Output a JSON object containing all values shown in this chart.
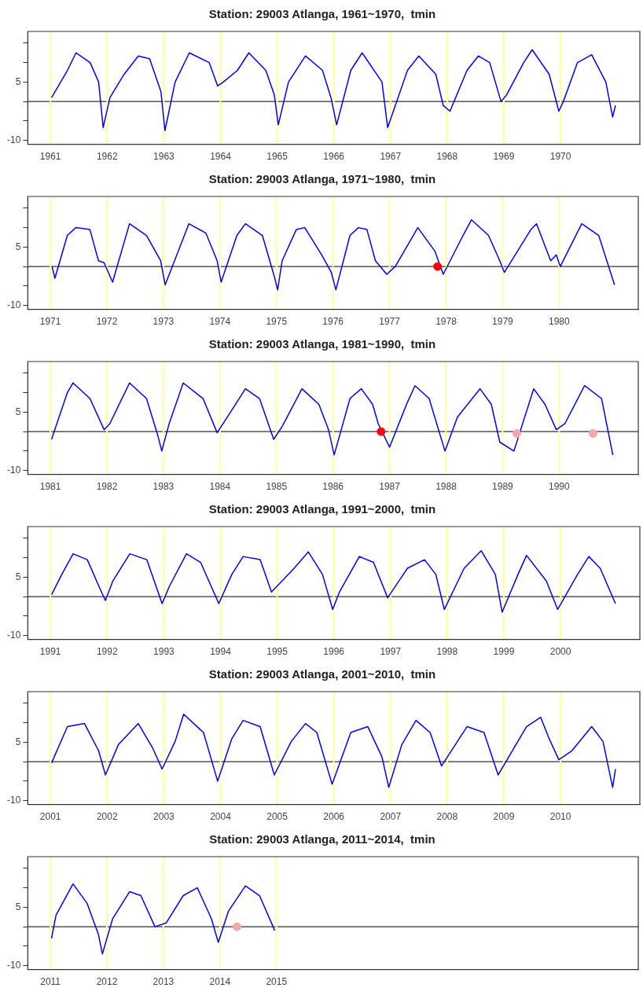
{
  "chart_data": [
    {
      "type": "line",
      "title": "Station: 29003 Atlanga, 1961~1970,  tmin",
      "xlim": [
        1960.6,
        1971.4
      ],
      "xticks": [
        1961,
        1962,
        1963,
        1964,
        1965,
        1966,
        1967,
        1968,
        1969,
        1970
      ],
      "ylim": [
        -11,
        18
      ],
      "yticks": [
        {
          "value": -10,
          "label": "-10"
        },
        {
          "value": -5,
          "label": null
        },
        {
          "value": 0,
          "label": null
        },
        {
          "value": 5,
          "label": "5"
        },
        {
          "value": 10,
          "label": null
        },
        {
          "value": 15,
          "label": null
        }
      ],
      "ref_lines": [
        {
          "axis": "y",
          "value": 0,
          "color": "#333333"
        },
        {
          "axis": "x",
          "value": 1961,
          "color": "#ffff99"
        },
        {
          "axis": "x",
          "value": 1962,
          "color": "#ffff99"
        },
        {
          "axis": "x",
          "value": 1963,
          "color": "#ffff99"
        },
        {
          "axis": "x",
          "value": 1964,
          "color": "#ffff99"
        },
        {
          "axis": "x",
          "value": 1965,
          "color": "#ffff99"
        },
        {
          "axis": "x",
          "value": 1966,
          "color": "#ffff99"
        },
        {
          "axis": "x",
          "value": 1967,
          "color": "#ffff99"
        },
        {
          "axis": "x",
          "value": 1968,
          "color": "#ffff99"
        },
        {
          "axis": "x",
          "value": 1969,
          "color": "#ffff99"
        },
        {
          "axis": "x",
          "value": 1970,
          "color": "#ffff99"
        }
      ],
      "series": [
        {
          "type": "line",
          "color": "#0000ff",
          "x": [
            1961.02,
            1961.3,
            1961.45,
            1961.7,
            1961.85,
            1961.93,
            1962.05,
            1962.3,
            1962.55,
            1962.75,
            1962.95,
            1963.02,
            1963.2,
            1963.45,
            1963.8,
            1963.95,
            1964.05,
            1964.3,
            1964.5,
            1964.8,
            1964.95,
            1965.02,
            1965.2,
            1965.5,
            1965.8,
            1965.95,
            1966.05,
            1966.3,
            1966.5,
            1966.85,
            1966.95,
            1967.05,
            1967.3,
            1967.5,
            1967.8,
            1967.93,
            1968.05,
            1968.35,
            1968.55,
            1968.75,
            1968.95,
            1969.05,
            1969.35,
            1969.5,
            1969.8,
            1969.97,
            1970.05,
            1970.3,
            1970.55,
            1970.8,
            1970.92,
            1970.97
          ],
          "values": [
            1,
            8,
            12.5,
            10,
            5,
            -6.7,
            1,
            7,
            11.7,
            11,
            2.5,
            -7.5,
            5,
            12.5,
            10,
            4,
            5,
            8,
            12.5,
            8,
            1.7,
            -6,
            5,
            11.7,
            8,
            1,
            -6,
            8,
            12.5,
            5,
            -6.7,
            -2.5,
            8,
            11.7,
            7,
            -1,
            -2.5,
            8,
            11.7,
            10,
            0,
            1.7,
            10,
            13.3,
            7,
            -2.5,
            0,
            10,
            12,
            5,
            -4,
            -1
          ]
        }
      ]
    },
    {
      "type": "line",
      "title": "Station: 29003 Atlanga, 1971~1980,  tmin",
      "xlim": [
        1970.6,
        1981.4
      ],
      "xticks": [
        1971,
        1972,
        1973,
        1974,
        1975,
        1976,
        1977,
        1978,
        1979,
        1980
      ],
      "ylim": [
        -11,
        18
      ],
      "yticks": [
        {
          "value": -10,
          "label": "-10"
        },
        {
          "value": -5,
          "label": null
        },
        {
          "value": 0,
          "label": null
        },
        {
          "value": 5,
          "label": "5"
        },
        {
          "value": 10,
          "label": null
        },
        {
          "value": 15,
          "label": null
        }
      ],
      "ref_lines": [
        {
          "axis": "y",
          "value": 0,
          "color": "#333333"
        },
        {
          "axis": "x",
          "value": 1971,
          "color": "#ffff99"
        },
        {
          "axis": "x",
          "value": 1972,
          "color": "#ffff99"
        },
        {
          "axis": "x",
          "value": 1973,
          "color": "#ffff99"
        },
        {
          "axis": "x",
          "value": 1974,
          "color": "#ffff99"
        },
        {
          "axis": "x",
          "value": 1975,
          "color": "#ffff99"
        },
        {
          "axis": "x",
          "value": 1976,
          "color": "#ffff99"
        },
        {
          "axis": "x",
          "value": 1977,
          "color": "#ffff99"
        },
        {
          "axis": "x",
          "value": 1978,
          "color": "#ffff99"
        },
        {
          "axis": "x",
          "value": 1979,
          "color": "#ffff99"
        },
        {
          "axis": "x",
          "value": 1980,
          "color": "#ffff99"
        }
      ],
      "series": [
        {
          "type": "line",
          "color": "#0000ff",
          "x": [
            1971.03,
            1971.08,
            1971.3,
            1971.45,
            1971.7,
            1971.85,
            1971.95,
            1972.1,
            1972.4,
            1972.7,
            1972.95,
            1973.03,
            1973.45,
            1973.75,
            1973.95,
            1974.02,
            1974.3,
            1974.45,
            1974.75,
            1974.97,
            1975.02,
            1975.1,
            1975.35,
            1975.5,
            1975.8,
            1975.97,
            1976.05,
            1976.3,
            1976.45,
            1976.6,
            1976.75,
            1976.95,
            1977.1,
            1977.5,
            1977.8,
            1977.95,
            1978.3,
            1978.45,
            1978.75,
            1978.95,
            1979.03,
            1979.5,
            1979.6,
            1979.85,
            1979.95,
            1980.02,
            1980.4,
            1980.7,
            1980.98
          ],
          "values": [
            0,
            -3,
            8,
            10,
            9.5,
            1.5,
            1,
            -4,
            11,
            8,
            1.5,
            -4.7,
            11,
            8.6,
            1.5,
            -4,
            8,
            11,
            8,
            -3,
            -6,
            1.5,
            9.5,
            10,
            3,
            -1.5,
            -6,
            8,
            10,
            9.5,
            1.5,
            -2,
            0,
            10,
            4,
            -2,
            8,
            12,
            8,
            1.5,
            -1.5,
            9.5,
            11,
            1.5,
            3,
            0,
            11,
            8,
            -4.7
          ]
        },
        {
          "type": "scatter",
          "color": "#ff0000",
          "x": [
            1977.85
          ],
          "values": [
            0
          ]
        }
      ]
    },
    {
      "type": "line",
      "title": "Station: 29003 Atlanga, 1981~1990,  tmin",
      "xlim": [
        1980.6,
        1991.4
      ],
      "xticks": [
        1981,
        1982,
        1983,
        1984,
        1985,
        1986,
        1987,
        1988,
        1989,
        1990
      ],
      "ylim": [
        -11,
        18
      ],
      "yticks": [
        {
          "value": -10,
          "label": "-10"
        },
        {
          "value": -5,
          "label": null
        },
        {
          "value": 0,
          "label": null
        },
        {
          "value": 5,
          "label": "5"
        },
        {
          "value": 10,
          "label": null
        },
        {
          "value": 15,
          "label": null
        }
      ],
      "ref_lines": [
        {
          "axis": "y",
          "value": 0,
          "color": "#333333"
        },
        {
          "axis": "x",
          "value": 1981,
          "color": "#ffff99"
        },
        {
          "axis": "x",
          "value": 1982,
          "color": "#ffff99"
        },
        {
          "axis": "x",
          "value": 1983,
          "color": "#ffff99"
        },
        {
          "axis": "x",
          "value": 1984,
          "color": "#ffff99"
        },
        {
          "axis": "x",
          "value": 1985,
          "color": "#ffff99"
        },
        {
          "axis": "x",
          "value": 1986,
          "color": "#ffff99"
        },
        {
          "axis": "x",
          "value": 1987,
          "color": "#ffff99"
        },
        {
          "axis": "x",
          "value": 1988,
          "color": "#ffff99"
        },
        {
          "axis": "x",
          "value": 1989,
          "color": "#ffff99"
        },
        {
          "axis": "x",
          "value": 1990,
          "color": "#ffff99"
        }
      ],
      "series": [
        {
          "type": "line",
          "color": "#0000ff",
          "x": [
            1981.02,
            1981.3,
            1981.4,
            1981.7,
            1981.95,
            1982.05,
            1982.4,
            1982.7,
            1982.9,
            1982.97,
            1983.1,
            1983.35,
            1983.7,
            1983.95,
            1984.2,
            1984.45,
            1984.7,
            1984.95,
            1985.1,
            1985.45,
            1985.75,
            1985.92,
            1986.02,
            1986.3,
            1986.5,
            1986.7,
            1986.8,
            1987.0,
            1987.3,
            1987.45,
            1987.7,
            1987.98,
            1988.2,
            1988.6,
            1988.8,
            1988.95,
            1989.2,
            1989.55,
            1989.75,
            1989.95,
            1990.1,
            1990.45,
            1990.75,
            1990.95
          ],
          "values": [
            -2,
            10,
            12.5,
            8.5,
            0.5,
            2,
            12.5,
            8.5,
            -1,
            -5,
            2,
            12.5,
            8.5,
            -0.3,
            5.3,
            11,
            8.5,
            -2,
            1.3,
            11,
            7,
            0.5,
            -6,
            8.5,
            11,
            7,
            2,
            -4,
            7,
            11.8,
            8.5,
            -5,
            3.7,
            11,
            7,
            -2.7,
            -5,
            11,
            7,
            0.5,
            2,
            11.8,
            8.5,
            -6
          ]
        },
        {
          "type": "scatter",
          "color": "#ff0000",
          "x": [
            1986.85
          ],
          "values": [
            0
          ]
        },
        {
          "type": "scatter",
          "color": "#f4a8a8",
          "x": [
            1989.25,
            1990.6
          ],
          "values": [
            -0.5,
            -0.5
          ]
        }
      ]
    },
    {
      "type": "line",
      "title": "Station: 29003 Atlanga, 1991~2000,  tmin",
      "xlim": [
        1990.6,
        2001.4
      ],
      "xticks": [
        1991,
        1992,
        1993,
        1994,
        1995,
        1996,
        1997,
        1998,
        1999,
        2000
      ],
      "ylim": [
        -11,
        18
      ],
      "yticks": [
        {
          "value": -10,
          "label": "-10"
        },
        {
          "value": -5,
          "label": null
        },
        {
          "value": 0,
          "label": null
        },
        {
          "value": 5,
          "label": "5"
        },
        {
          "value": 10,
          "label": null
        },
        {
          "value": 15,
          "label": null
        }
      ],
      "ref_lines": [
        {
          "axis": "y",
          "value": 0,
          "color": "#333333"
        },
        {
          "axis": "x",
          "value": 1991,
          "color": "#ffff99"
        },
        {
          "axis": "x",
          "value": 1992,
          "color": "#ffff99"
        },
        {
          "axis": "x",
          "value": 1993,
          "color": "#ffff99"
        },
        {
          "axis": "x",
          "value": 1994,
          "color": "#ffff99"
        },
        {
          "axis": "x",
          "value": 1995,
          "color": "#ffff99"
        },
        {
          "axis": "x",
          "value": 1996,
          "color": "#ffff99"
        },
        {
          "axis": "x",
          "value": 1997,
          "color": "#ffff99"
        },
        {
          "axis": "x",
          "value": 1998,
          "color": "#ffff99"
        },
        {
          "axis": "x",
          "value": 1999,
          "color": "#ffff99"
        },
        {
          "axis": "x",
          "value": 2000,
          "color": "#ffff99"
        }
      ],
      "series": [
        {
          "type": "line",
          "color": "#0000ff",
          "x": [
            1991.02,
            1991.2,
            1991.4,
            1991.65,
            1991.9,
            1991.97,
            1992.1,
            1992.4,
            1992.7,
            1992.97,
            1993.1,
            1993.4,
            1993.65,
            1993.97,
            1994.2,
            1994.4,
            1994.7,
            1994.9,
            1995.3,
            1995.55,
            1995.8,
            1995.98,
            1996.1,
            1996.45,
            1996.7,
            1996.95,
            1997.3,
            1997.6,
            1997.8,
            1997.95,
            1998.3,
            1998.6,
            1998.85,
            1998.97,
            1999.25,
            1999.4,
            1999.75,
            1999.95,
            2000.3,
            2000.5,
            2000.7,
            2000.97
          ],
          "values": [
            0.5,
            5.7,
            11,
            9.5,
            1.2,
            -1,
            4,
            11,
            9.5,
            -1.8,
            2.7,
            11,
            8.8,
            -1.8,
            5.7,
            10.3,
            9.5,
            1.2,
            7.3,
            11.5,
            5.7,
            -3.3,
            1.2,
            10.3,
            8.8,
            -0.3,
            7.3,
            9.5,
            5.7,
            -3.3,
            7.3,
            11.8,
            5.7,
            -4,
            5.7,
            10.6,
            4,
            -3.3,
            5.7,
            10.3,
            7.3,
            -1.8
          ]
        }
      ]
    },
    {
      "type": "line",
      "title": "Station: 29003 Atlanga, 2001~2010,  tmin",
      "xlim": [
        2000.6,
        2011.4
      ],
      "xticks": [
        2001,
        2002,
        2003,
        2004,
        2005,
        2006,
        2007,
        2008,
        2009,
        2010
      ],
      "ylim": [
        -11,
        18
      ],
      "yticks": [
        {
          "value": -10,
          "label": "-10"
        },
        {
          "value": -5,
          "label": null
        },
        {
          "value": 0,
          "label": null
        },
        {
          "value": 5,
          "label": "5"
        },
        {
          "value": 10,
          "label": null
        },
        {
          "value": 15,
          "label": null
        }
      ],
      "ref_lines": [
        {
          "axis": "y",
          "value": 0,
          "color": "#333333"
        },
        {
          "axis": "x",
          "value": 2001,
          "color": "#ffff99"
        },
        {
          "axis": "x",
          "value": 2002,
          "color": "#ffff99"
        },
        {
          "axis": "x",
          "value": 2003,
          "color": "#ffff99"
        },
        {
          "axis": "x",
          "value": 2004,
          "color": "#ffff99"
        },
        {
          "axis": "x",
          "value": 2005,
          "color": "#ffff99"
        },
        {
          "axis": "x",
          "value": 2006,
          "color": "#ffff99"
        },
        {
          "axis": "x",
          "value": 2007,
          "color": "#ffff99"
        },
        {
          "axis": "x",
          "value": 2008,
          "color": "#ffff99"
        },
        {
          "axis": "x",
          "value": 2009,
          "color": "#ffff99"
        },
        {
          "axis": "x",
          "value": 2010,
          "color": "#ffff99"
        }
      ],
      "series": [
        {
          "type": "line",
          "color": "#0000ff",
          "x": [
            2001.02,
            2001.3,
            2001.6,
            2001.85,
            2001.97,
            2002.2,
            2002.55,
            2002.8,
            2002.97,
            2003.2,
            2003.35,
            2003.7,
            2003.95,
            2004.2,
            2004.4,
            2004.7,
            2004.95,
            2005.25,
            2005.5,
            2005.7,
            2005.97,
            2006.3,
            2006.6,
            2006.85,
            2006.97,
            2007.2,
            2007.45,
            2007.7,
            2007.9,
            2008.35,
            2008.65,
            2008.9,
            2009.4,
            2009.65,
            2009.8,
            2009.97,
            2010.2,
            2010.55,
            2010.75,
            2010.92,
            2010.97
          ],
          "values": [
            -0.3,
            9,
            9.8,
            2.8,
            -3.4,
            4.4,
            9.8,
            3.6,
            -1.9,
            5.2,
            12.2,
            7.5,
            -5,
            5.9,
            10.6,
            9,
            -3.4,
            5.2,
            9.8,
            7.5,
            -5.8,
            7.5,
            9,
            1.2,
            -6.6,
            4.4,
            10.6,
            7.5,
            -1.1,
            9,
            7.5,
            -3.4,
            9,
            11.4,
            5.9,
            0.5,
            2.8,
            9,
            5.2,
            -6.6,
            -1.9
          ]
        }
      ]
    },
    {
      "type": "line",
      "title": "Station: 29003 Atlanga, 2011~2014,  tmin",
      "xlim": [
        2010.6,
        2021.4
      ],
      "xticks": [
        2011,
        2012,
        2013,
        2014,
        2015
      ],
      "ylim": [
        -11,
        18
      ],
      "yticks": [
        {
          "value": -10,
          "label": "-10"
        },
        {
          "value": -5,
          "label": null
        },
        {
          "value": 0,
          "label": null
        },
        {
          "value": 5,
          "label": "5"
        },
        {
          "value": 10,
          "label": null
        },
        {
          "value": 15,
          "label": null
        }
      ],
      "ref_lines": [
        {
          "axis": "y",
          "value": 0,
          "color": "#333333"
        },
        {
          "axis": "x",
          "value": 2011,
          "color": "#ffff99"
        },
        {
          "axis": "x",
          "value": 2012,
          "color": "#ffff99"
        },
        {
          "axis": "x",
          "value": 2013,
          "color": "#ffff99"
        },
        {
          "axis": "x",
          "value": 2014,
          "color": "#ffff99"
        },
        {
          "axis": "x",
          "value": 2015,
          "color": "#ffff99"
        }
      ],
      "series": [
        {
          "type": "line",
          "color": "#0000ff",
          "x": [
            2011.02,
            2011.1,
            2011.4,
            2011.65,
            2011.85,
            2011.92,
            2012.1,
            2012.4,
            2012.6,
            2012.85,
            2013.05,
            2013.35,
            2013.6,
            2013.85,
            2013.97,
            2014.15,
            2014.45,
            2014.7,
            2014.97
          ],
          "values": [
            -3,
            3,
            11,
            6,
            -2,
            -7,
            2,
            9,
            8,
            0,
            1,
            8,
            10,
            2,
            -4,
            4,
            10.5,
            8,
            -1
          ]
        },
        {
          "type": "scatter",
          "color": "#f4a8a8",
          "x": [
            2014.3
          ],
          "values": [
            0
          ]
        }
      ]
    }
  ]
}
